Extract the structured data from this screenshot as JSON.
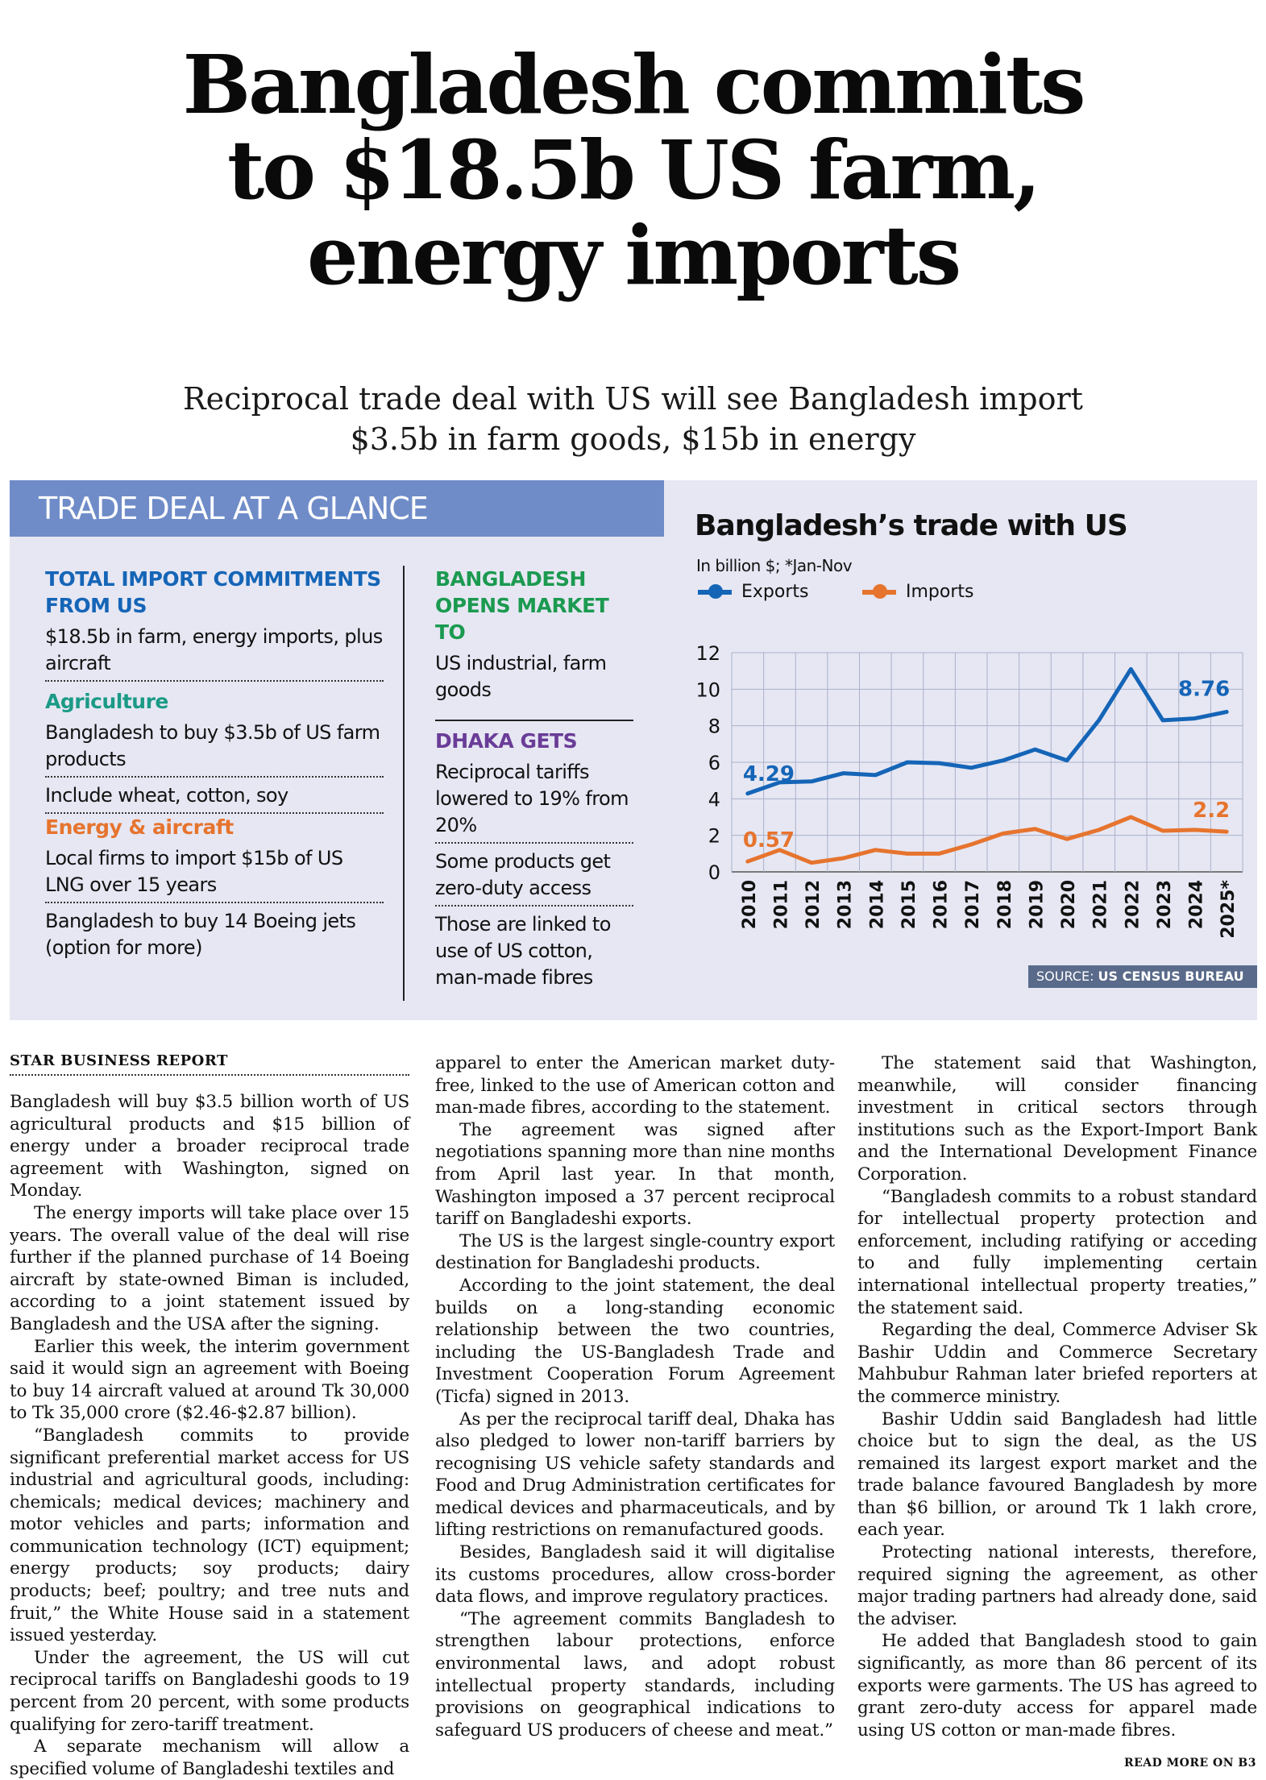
{
  "headline": {
    "lines": [
      "Bangladesh commits",
      "to $18.5b US farm,",
      "energy imports"
    ]
  },
  "deck": {
    "lines": [
      "Reciprocal trade deal with US will see Bangladesh import",
      "$3.5b in farm goods, $15b in energy"
    ]
  },
  "glance": {
    "header": "TRADE DEAL AT A GLANCE",
    "left": {
      "total_head": "TOTAL IMPORT COMMITMENTS FROM US",
      "total_text": "$18.5b in farm, energy imports, plus aircraft",
      "agri_head": "Agriculture",
      "agri_item1": "Bangladesh to buy $3.5b of US farm products",
      "agri_item2": "Include wheat, cotton, soy",
      "energy_head": "Energy & aircraft",
      "energy_item1": "Local firms to import $15b of US LNG over 15 years",
      "energy_item2": "Bangladesh to buy 14 Boeing jets (option for more)"
    },
    "right": {
      "opens_head": "BANGLADESH OPENS MARKET TO",
      "opens_text": "US industrial, farm goods",
      "gets_head": "DHAKA GETS",
      "gets_item1": "Reciprocal tariffs lowered to 19% from 20%",
      "gets_item2": "Some products get zero-duty access",
      "gets_item3": "Those are linked to use of US cotton, man-made fibres"
    }
  },
  "chart_data": {
    "type": "line",
    "title": "Bangladesh’s trade with US",
    "subtitle": "In billion $; *Jan-Nov",
    "x": [
      "2010",
      "2011",
      "2012",
      "2013",
      "2014",
      "2015",
      "2016",
      "2017",
      "2018",
      "2019",
      "2020",
      "2021",
      "2022",
      "2023",
      "2024",
      "2025*"
    ],
    "series": [
      {
        "name": "Exports",
        "color": "#1565b7",
        "values": [
          4.29,
          4.9,
          4.95,
          5.4,
          5.3,
          6.0,
          5.95,
          5.7,
          6.1,
          6.7,
          6.1,
          8.3,
          11.1,
          8.3,
          8.4,
          8.76
        ]
      },
      {
        "name": "Imports",
        "color": "#e6742e",
        "values": [
          0.57,
          1.2,
          0.5,
          0.75,
          1.2,
          1.0,
          1.0,
          1.5,
          2.1,
          2.35,
          1.8,
          2.3,
          3.0,
          2.25,
          2.3,
          2.2
        ]
      }
    ],
    "data_labels": {
      "exports_first": "4.29",
      "exports_last": "8.76",
      "imports_first": "0.57",
      "imports_last": "2.2"
    },
    "y_ticks": [
      "0",
      "2",
      "4",
      "6",
      "8",
      "10",
      "12"
    ],
    "ylim": [
      0,
      12
    ],
    "grid": true,
    "legend": "top-left",
    "source_label": "SOURCE:",
    "source_name": "US CENSUS BUREAU"
  },
  "article": {
    "byline": "STAR BUSINESS REPORT",
    "col1": [
      "Bangladesh will buy $3.5 billion worth of US agricultural products and $15 billion of energy under a broader reciprocal trade agreement with Washington, signed on Monday.",
      "The energy imports will take place over 15 years. The overall value of the deal will rise further if the planned purchase of 14 Boeing aircraft by state-owned Biman is included, according to a joint statement issued by Bangladesh and the USA after the signing.",
      "Earlier this week, the interim government said it would sign an agreement with Boeing to buy 14 aircraft valued at around Tk 30,000 to Tk 35,000 crore ($2.46-$2.87 billion).",
      "“Bangladesh commits to provide significant preferential market access for US industrial and agricultural goods, including: chemicals; medical devices; machinery and motor vehicles and parts; information and communication technology (ICT) equipment; energy products; soy products; dairy products; beef; poultry; and tree nuts and fruit,” the White House said in a statement issued yesterday.",
      "Under the agreement, the US will cut reciprocal tariffs on Bangladeshi goods to 19 percent from 20 percent, with some products qualifying for zero-tariff treatment.",
      "A separate mechanism will allow a specified volume of Bangladeshi textiles and"
    ],
    "col2": [
      "apparel to enter the American market duty-free, linked to the use of American cotton and man-made fibres, according to the statement.",
      "The agreement was signed after negotiations spanning more than nine months from April last year. In that month, Washington imposed a 37 percent reciprocal tariff on Bangladeshi exports.",
      "The US is the largest single-country export destination for Bangladeshi products.",
      "According to the joint statement, the deal builds on a long-standing economic relationship between the two countries, including the US-Bangladesh Trade and Investment Cooperation Forum Agreement (Ticfa) signed in 2013.",
      "As per the reciprocal tariff deal, Dhaka has also pledged to lower non-tariff barriers by recognising US vehicle safety standards and Food and Drug Administration certificates for medical devices and pharmaceuticals, and by lifting restrictions on remanufactured goods.",
      "Besides, Bangladesh said it will digitalise its customs procedures, allow cross-border data flows, and improve regulatory practices.",
      "“The agreement commits Bangladesh to strengthen labour protections, enforce environmental laws, and adopt robust intellectual property standards, including provisions on geographical indications to safeguard US producers of cheese and meat.”"
    ],
    "col3": [
      "The statement said that Washington, meanwhile, will consider financing investment in critical sectors through institutions such as the Export-Import Bank and the International Development Finance Corporation.",
      "“Bangladesh commits to a robust standard for intellectual property protection and enforcement, including ratifying or acceding to and fully implementing certain international intellectual property treaties,” the statement said.",
      "Regarding the deal, Commerce Adviser Sk Bashir Uddin and Commerce Secretary Mahbubur Rahman later briefed reporters at the commerce ministry.",
      "Bashir Uddin said Bangladesh had little choice but to sign the deal, as the US remained its largest export market and the trade balance favoured Bangladesh by more than $6 billion, or around Tk 1 lakh crore, each year.",
      "Protecting national interests, therefore, required signing the agreement, as other major trading partners had already done, said the adviser.",
      "He added that Bangladesh stood to gain significantly, as more than 86 percent of its exports were garments. The US has agreed to grant zero-duty access for apparel made using US cotton or man-made fibres."
    ],
    "read_more": "READ MORE ON B3"
  }
}
